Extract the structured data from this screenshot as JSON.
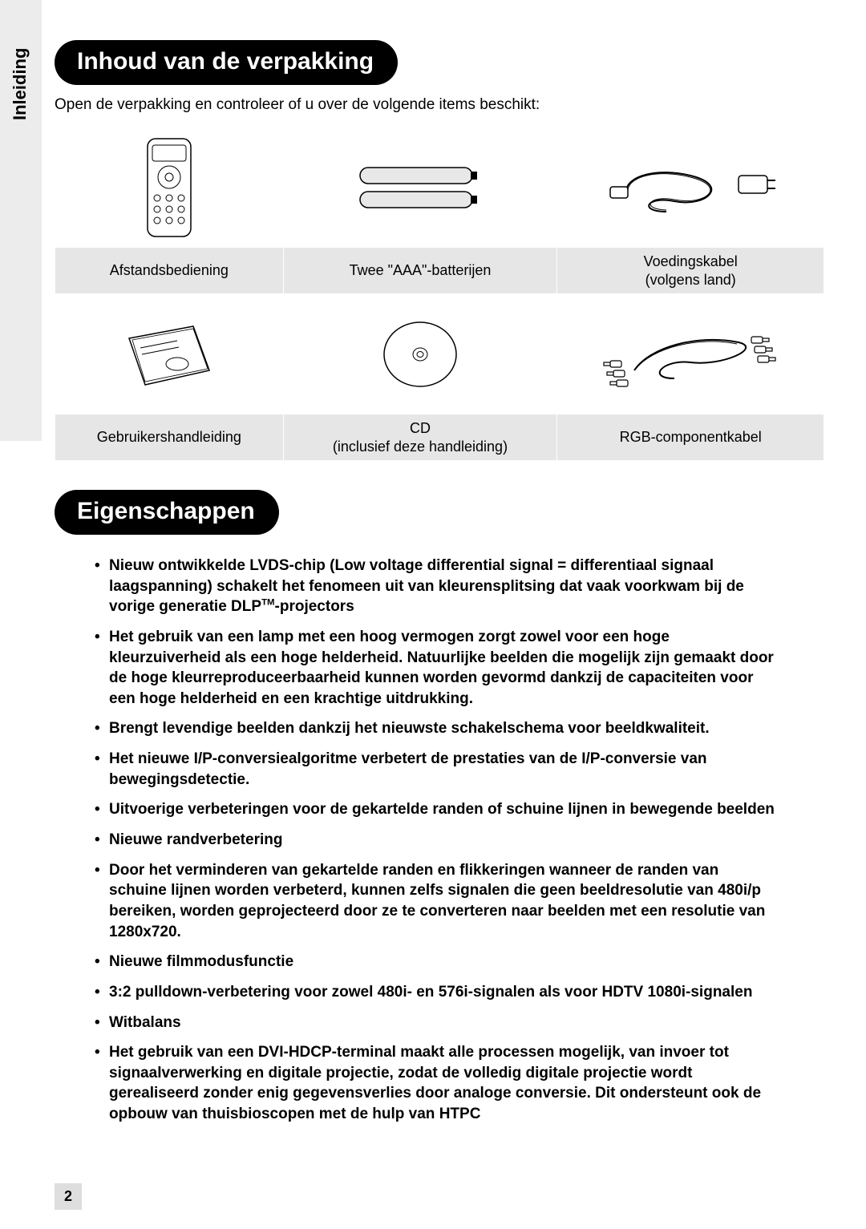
{
  "sideTab": "Inleiding",
  "section1": {
    "heading": "Inhoud van de verpakking",
    "intro": "Open de verpakking en controleer of u over de volgende items beschikt:",
    "items": [
      {
        "label": "Afstandsbediening",
        "icon": "remote"
      },
      {
        "label": "Twee \"AAA\"-batterijen",
        "icon": "batteries"
      },
      {
        "label": "Voedingskabel\n(volgens land)",
        "icon": "power-cable"
      },
      {
        "label": "Gebruikershandleiding",
        "icon": "manual"
      },
      {
        "label": "CD\n(inclusief deze handleiding)",
        "icon": "cd"
      },
      {
        "label": "RGB-componentkabel",
        "icon": "component-cable"
      }
    ]
  },
  "section2": {
    "heading": "Eigenschappen",
    "bullets": [
      "Nieuw ontwikkelde LVDS-chip (Low voltage differential signal = differentiaal signaal laagspanning) schakelt het fenomeen uit van kleurensplitsing dat vaak voorkwam bij de vorige generatie DLP™-projectors",
      "Het gebruik van een lamp met een hoog vermogen zorgt zowel voor een hoge kleurzuiverheid als een hoge helderheid. Natuurlijke beelden die mogelijk zijn gemaakt door de hoge kleurreproduceerbaarheid kunnen worden gevormd dankzij de capaciteiten voor een hoge helderheid en een krachtige uitdrukking.",
      "Brengt levendige beelden dankzij het nieuwste schakelschema voor beeldkwaliteit.",
      "Het nieuwe I/P-conversiealgoritme verbetert de prestaties van de I/P-conversie van bewegingsdetectie.",
      "Uitvoerige verbeteringen voor de gekartelde randen of schuine lijnen in bewegende beelden",
      "Nieuwe randverbetering",
      "Door het verminderen van gekartelde randen en flikkeringen wanneer de randen van schuine lijnen worden verbeterd, kunnen zelfs signalen die geen beeldresolutie van 480i/p bereiken, worden geprojecteerd door ze te converteren naar beelden met een resolutie van 1280x720.",
      "Nieuwe filmmodusfunctie",
      "3:2 pulldown-verbetering voor zowel 480i- en 576i-signalen als voor HDTV 1080i-signalen",
      "Witbalans",
      "Het gebruik van een DVI-HDCP-terminal maakt alle processen mogelijk, van invoer tot signaalverwerking en digitale projectie, zodat de volledig digitale projectie wordt gerealiseerd zonder enig gegevensverlies door analoge conversie. Dit ondersteunt ook de opbouw van thuisbioscopen met de hulp van HTPC"
    ]
  },
  "pageNumber": "2",
  "colors": {
    "pillBg": "#000000",
    "pillText": "#ffffff",
    "gridBg": "#e6e6e6",
    "sideBg": "#ececec"
  }
}
